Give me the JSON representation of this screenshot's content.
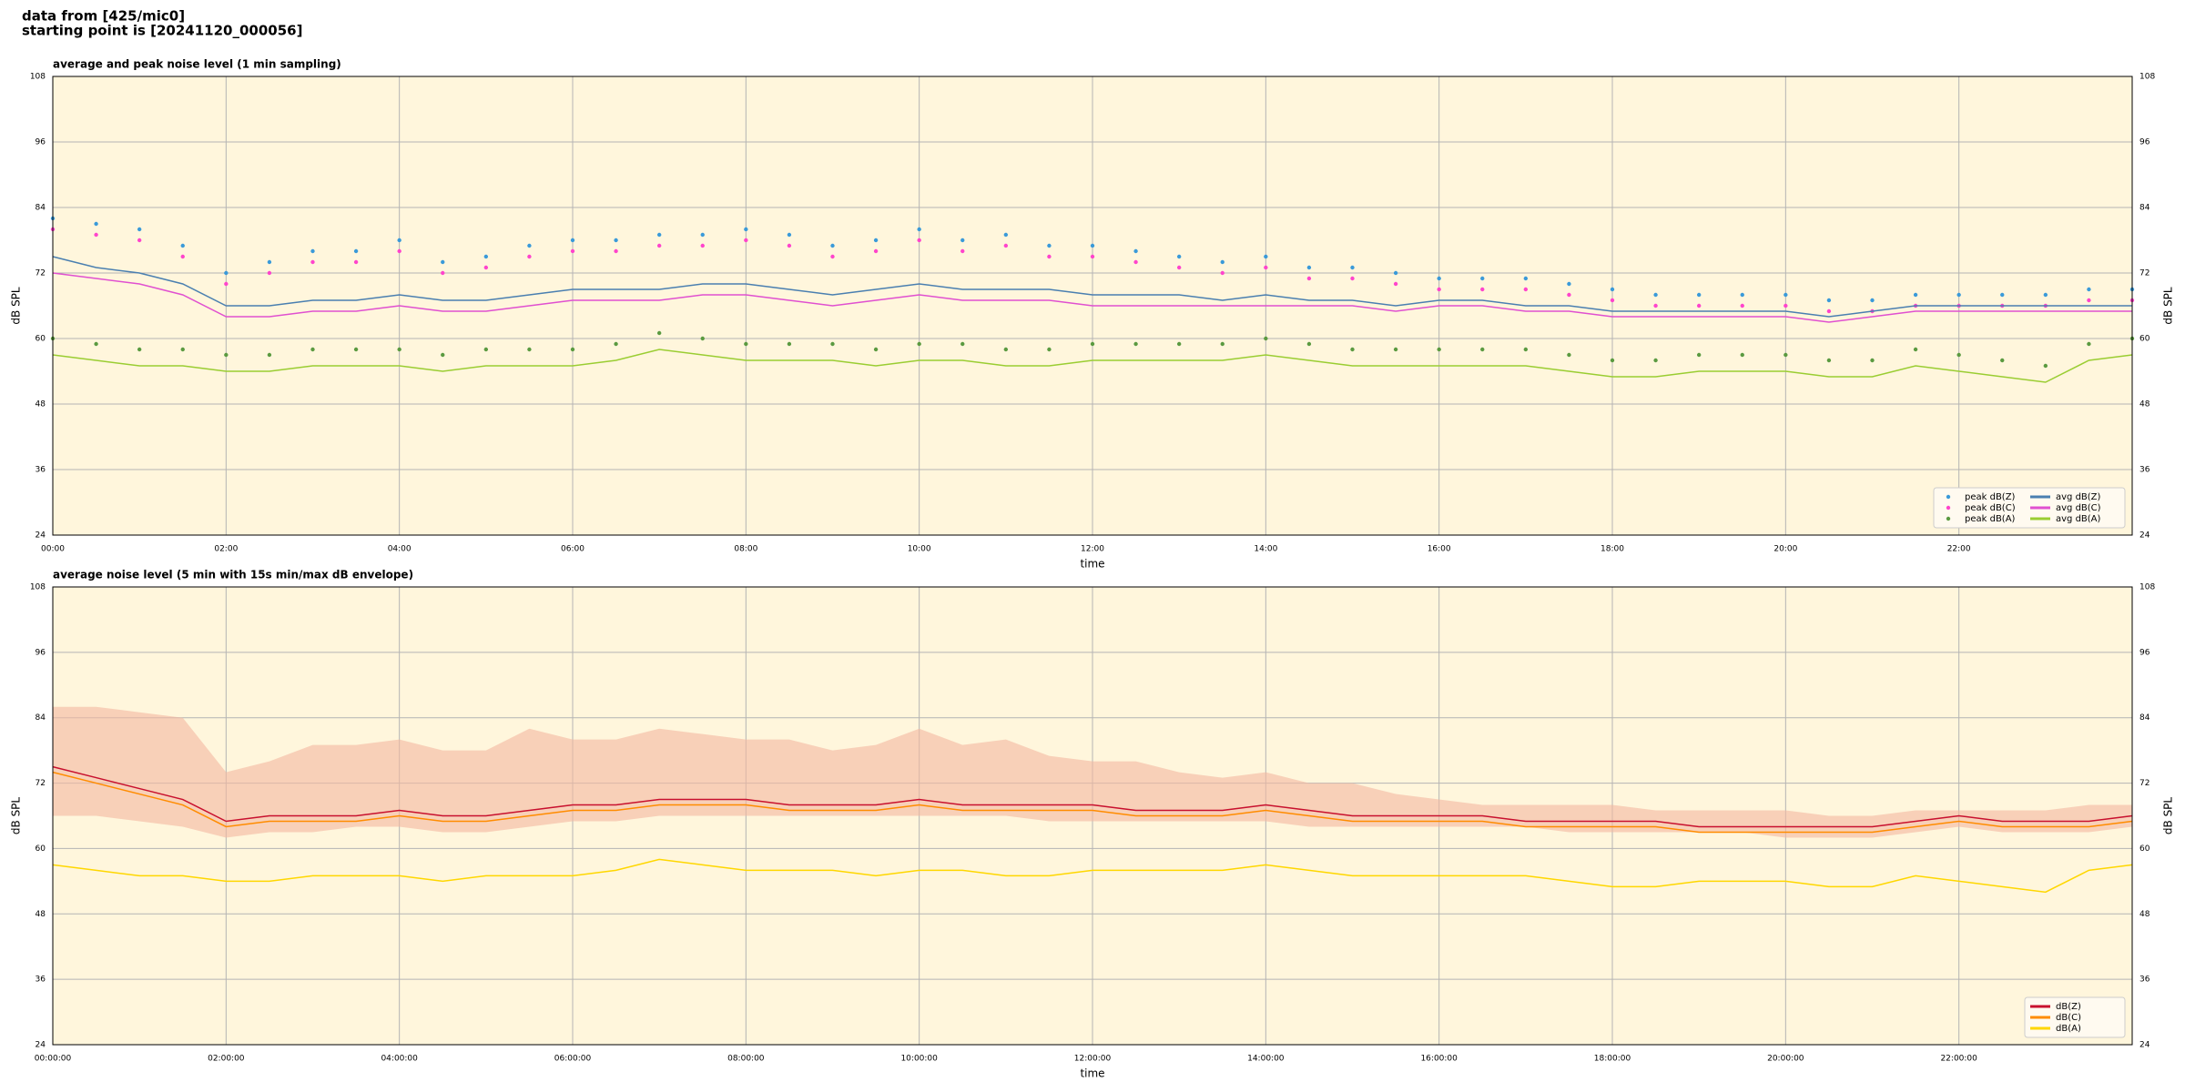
{
  "suptitle": [
    "data from [425/mic0]",
    "starting point is [20241120_000056]"
  ],
  "chart_data": [
    {
      "type": "line",
      "title": "average and peak noise level (1 min sampling)",
      "xlabel": "time",
      "ylabel": "dB SPL",
      "background": "#fff6dc",
      "grid": true,
      "legend": "lower right",
      "legend_columns": 2,
      "x": [
        0,
        0.5,
        1,
        1.5,
        2,
        2.5,
        3,
        3.5,
        4,
        4.5,
        5,
        5.5,
        6,
        6.5,
        7,
        7.5,
        8,
        8.5,
        9,
        9.5,
        10,
        10.5,
        11,
        11.5,
        12,
        12.5,
        13,
        13.5,
        14,
        14.5,
        15,
        15.5,
        16,
        16.5,
        17,
        17.5,
        18,
        18.5,
        19,
        19.5,
        20,
        20.5,
        21,
        21.5,
        22,
        22.5,
        23,
        23.5,
        24
      ],
      "xlim": [
        0,
        24
      ],
      "xticks": [
        {
          "value": 0,
          "label": "00:00"
        },
        {
          "value": 2,
          "label": "02:00"
        },
        {
          "value": 4,
          "label": "04:00"
        },
        {
          "value": 6,
          "label": "06:00"
        },
        {
          "value": 8,
          "label": "08:00"
        },
        {
          "value": 10,
          "label": "10:00"
        },
        {
          "value": 12,
          "label": "12:00"
        },
        {
          "value": 14,
          "label": "14:00"
        },
        {
          "value": 16,
          "label": "16:00"
        },
        {
          "value": 18,
          "label": "18:00"
        },
        {
          "value": 20,
          "label": "20:00"
        },
        {
          "value": 22,
          "label": "22:00"
        }
      ],
      "ylim": [
        24,
        108
      ],
      "yticks": [
        24,
        36,
        48,
        60,
        72,
        84,
        96,
        108
      ],
      "series": [
        {
          "name": "peak dB(Z)",
          "color": "#3a9ad9",
          "kind": "scatter",
          "values": [
            82,
            81,
            80,
            77,
            72,
            74,
            76,
            76,
            78,
            74,
            75,
            77,
            78,
            78,
            79,
            79,
            80,
            79,
            77,
            78,
            80,
            78,
            79,
            77,
            77,
            76,
            75,
            74,
            75,
            73,
            73,
            72,
            71,
            71,
            71,
            70,
            69,
            68,
            68,
            68,
            68,
            67,
            67,
            68,
            68,
            68,
            68,
            69,
            69
          ]
        },
        {
          "name": "peak dB(C)",
          "color": "#ff44cc",
          "kind": "scatter",
          "values": [
            80,
            79,
            78,
            75,
            70,
            72,
            74,
            74,
            76,
            72,
            73,
            75,
            76,
            76,
            77,
            77,
            78,
            77,
            75,
            76,
            78,
            76,
            77,
            75,
            75,
            74,
            73,
            72,
            73,
            71,
            71,
            70,
            69,
            69,
            69,
            68,
            67,
            66,
            66,
            66,
            66,
            65,
            65,
            66,
            66,
            66,
            66,
            67,
            67
          ]
        },
        {
          "name": "peak dB(A)",
          "color": "#5a9a40",
          "kind": "scatter",
          "values": [
            60,
            59,
            58,
            58,
            57,
            57,
            58,
            58,
            58,
            57,
            58,
            58,
            58,
            59,
            61,
            60,
            59,
            59,
            59,
            58,
            59,
            59,
            58,
            58,
            59,
            59,
            59,
            59,
            60,
            59,
            58,
            58,
            58,
            58,
            58,
            57,
            56,
            56,
            57,
            57,
            57,
            56,
            56,
            58,
            57,
            56,
            55,
            59,
            60
          ]
        },
        {
          "name": "avg dB(Z)",
          "color": "#4a7fb0",
          "kind": "line",
          "values": [
            75,
            73,
            72,
            70,
            66,
            66,
            67,
            67,
            68,
            67,
            67,
            68,
            69,
            69,
            69,
            70,
            70,
            69,
            68,
            69,
            70,
            69,
            69,
            69,
            68,
            68,
            68,
            67,
            68,
            67,
            67,
            66,
            67,
            67,
            66,
            66,
            65,
            65,
            65,
            65,
            65,
            64,
            65,
            66,
            66,
            66,
            66,
            66,
            66
          ]
        },
        {
          "name": "avg dB(C)",
          "color": "#e050d0",
          "kind": "line",
          "values": [
            72,
            71,
            70,
            68,
            64,
            64,
            65,
            65,
            66,
            65,
            65,
            66,
            67,
            67,
            67,
            68,
            68,
            67,
            66,
            67,
            68,
            67,
            67,
            67,
            66,
            66,
            66,
            66,
            66,
            66,
            66,
            65,
            66,
            66,
            65,
            65,
            64,
            64,
            64,
            64,
            64,
            63,
            64,
            65,
            65,
            65,
            65,
            65,
            65
          ]
        },
        {
          "name": "avg dB(A)",
          "color": "#9acd32",
          "kind": "line",
          "values": [
            57,
            56,
            55,
            55,
            54,
            54,
            55,
            55,
            55,
            54,
            55,
            55,
            55,
            56,
            58,
            57,
            56,
            56,
            56,
            55,
            56,
            56,
            55,
            55,
            56,
            56,
            56,
            56,
            57,
            56,
            55,
            55,
            55,
            55,
            55,
            54,
            53,
            53,
            54,
            54,
            54,
            53,
            53,
            55,
            54,
            53,
            52,
            56,
            57
          ]
        }
      ]
    },
    {
      "type": "line",
      "title": "average noise level (5 min with 15s min/max dB envelope)",
      "xlabel": "time",
      "ylabel": "dB SPL",
      "background": "#fff6dc",
      "grid": true,
      "legend": "lower right",
      "legend_columns": 1,
      "x": [
        0,
        0.5,
        1,
        1.5,
        2,
        2.5,
        3,
        3.5,
        4,
        4.5,
        5,
        5.5,
        6,
        6.5,
        7,
        7.5,
        8,
        8.5,
        9,
        9.5,
        10,
        10.5,
        11,
        11.5,
        12,
        12.5,
        13,
        13.5,
        14,
        14.5,
        15,
        15.5,
        16,
        16.5,
        17,
        17.5,
        18,
        18.5,
        19,
        19.5,
        20,
        20.5,
        21,
        21.5,
        22,
        22.5,
        23,
        23.5,
        24
      ],
      "xlim": [
        0,
        24
      ],
      "xticks": [
        {
          "value": 0,
          "label": "00:00:00"
        },
        {
          "value": 2,
          "label": "02:00:00"
        },
        {
          "value": 4,
          "label": "04:00:00"
        },
        {
          "value": 6,
          "label": "06:00:00"
        },
        {
          "value": 8,
          "label": "08:00:00"
        },
        {
          "value": 10,
          "label": "10:00:00"
        },
        {
          "value": 12,
          "label": "12:00:00"
        },
        {
          "value": 14,
          "label": "14:00:00"
        },
        {
          "value": 16,
          "label": "16:00:00"
        },
        {
          "value": 18,
          "label": "18:00:00"
        },
        {
          "value": 20,
          "label": "20:00:00"
        },
        {
          "value": 22,
          "label": "22:00:00"
        }
      ],
      "ylim": [
        24,
        108
      ],
      "yticks": [
        24,
        36,
        48,
        60,
        72,
        84,
        96,
        108
      ],
      "envelope": {
        "color": "#f4b8a0",
        "high": [
          86,
          86,
          85,
          84,
          74,
          76,
          79,
          79,
          80,
          78,
          78,
          82,
          80,
          80,
          82,
          81,
          80,
          80,
          78,
          79,
          82,
          79,
          80,
          77,
          76,
          76,
          74,
          73,
          74,
          72,
          72,
          70,
          69,
          68,
          68,
          68,
          68,
          67,
          67,
          67,
          67,
          66,
          66,
          67,
          67,
          67,
          67,
          68,
          68
        ],
        "low": [
          66,
          66,
          65,
          64,
          62,
          63,
          63,
          64,
          64,
          63,
          63,
          64,
          65,
          65,
          66,
          66,
          66,
          66,
          66,
          66,
          66,
          66,
          66,
          65,
          65,
          65,
          65,
          65,
          65,
          64,
          64,
          64,
          64,
          64,
          64,
          63,
          63,
          63,
          63,
          63,
          62,
          62,
          62,
          63,
          64,
          63,
          63,
          63,
          64
        ]
      },
      "series": [
        {
          "name": "dB(Z)",
          "color": "#c8102e",
          "kind": "line",
          "values": [
            75,
            73,
            71,
            69,
            65,
            66,
            66,
            66,
            67,
            66,
            66,
            67,
            68,
            68,
            69,
            69,
            69,
            68,
            68,
            68,
            69,
            68,
            68,
            68,
            68,
            67,
            67,
            67,
            68,
            67,
            66,
            66,
            66,
            66,
            65,
            65,
            65,
            65,
            64,
            64,
            64,
            64,
            64,
            65,
            66,
            65,
            65,
            65,
            66
          ]
        },
        {
          "name": "dB(C)",
          "color": "#ff8c00",
          "kind": "line",
          "values": [
            74,
            72,
            70,
            68,
            64,
            65,
            65,
            65,
            66,
            65,
            65,
            66,
            67,
            67,
            68,
            68,
            68,
            67,
            67,
            67,
            68,
            67,
            67,
            67,
            67,
            66,
            66,
            66,
            67,
            66,
            65,
            65,
            65,
            65,
            64,
            64,
            64,
            64,
            63,
            63,
            63,
            63,
            63,
            64,
            65,
            64,
            64,
            64,
            65
          ]
        },
        {
          "name": "dB(A)",
          "color": "#ffd700",
          "kind": "line",
          "values": [
            57,
            56,
            55,
            55,
            54,
            54,
            55,
            55,
            55,
            54,
            55,
            55,
            55,
            56,
            58,
            57,
            56,
            56,
            56,
            55,
            56,
            56,
            55,
            55,
            56,
            56,
            56,
            56,
            57,
            56,
            55,
            55,
            55,
            55,
            55,
            54,
            53,
            53,
            54,
            54,
            54,
            53,
            53,
            55,
            54,
            53,
            52,
            56,
            57
          ]
        }
      ]
    }
  ]
}
